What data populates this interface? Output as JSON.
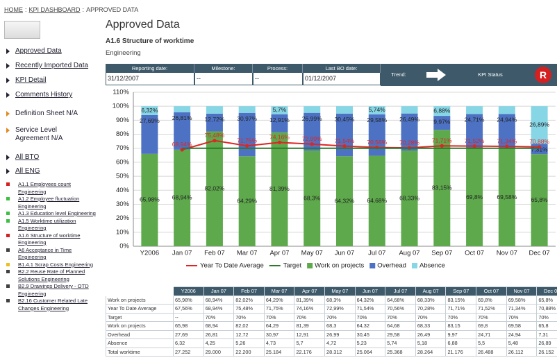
{
  "breadcrumb": {
    "items": [
      "HOME",
      "KPI DASHBOARD",
      "APPROVED DATA"
    ],
    "separator": ":"
  },
  "header": {
    "title": "Approved Data",
    "subtitle": "A1.6 Structure of worktime",
    "unit": "Engineering"
  },
  "info_bar": {
    "fields": [
      {
        "label": "Reporting date:",
        "value": "31/12/2007"
      },
      {
        "label": "Milestone:",
        "value": "--"
      },
      {
        "label": "Process:",
        "value": "--"
      },
      {
        "label": "Last BO date:",
        "value": "01/12/2007"
      }
    ],
    "trend_label": "Trend:",
    "kpi_status_label": "KPI Status",
    "kpi_status": "R"
  },
  "sidebar": {
    "nav": [
      "Approved Data",
      "Recently Imported Data",
      "KPI Detail",
      "Comments History"
    ],
    "info": [
      "Definition Sheet N/A",
      "Service Level Agreement N/A"
    ],
    "groups": [
      "All BTO",
      "All ENG"
    ],
    "kpis": [
      {
        "label": "A1.1 Employees count Engineering",
        "color": "#d42020"
      },
      {
        "label": "A1.2 Employee fluctuation Engineering",
        "color": "#3cc040"
      },
      {
        "label": "A1.3 Education level Engineering",
        "color": "#3cc040"
      },
      {
        "label": "A1.5 Worktime utilization Engineering",
        "color": "#3cc040"
      },
      {
        "label": "A1.6 Structure of worktime Engineering",
        "color": "#d42020"
      },
      {
        "label": "A6 Acceptance in Time Engineering",
        "color": "#404040"
      },
      {
        "label": "B1.4.1 Scrap Costs Engineering",
        "color": "#e8c020"
      },
      {
        "label": "B2.2 Reuse Rate of Planned Solutions Engineering",
        "color": "#404040"
      },
      {
        "label": "B2.9 Drawings Delivery - OTD Engineering",
        "color": "#404040"
      },
      {
        "label": "B2.16 Customer Related Late Changes Engineering",
        "color": "#404040"
      }
    ]
  },
  "chart_data": {
    "type": "bar",
    "stacked": true,
    "categories": [
      "Y2006",
      "Jan 07",
      "Feb 07",
      "Mar 07",
      "Apr 07",
      "May 07",
      "Jun 07",
      "Jul 07",
      "Aug 07",
      "Sep 07",
      "Oct 07",
      "Nov 07",
      "Dec 07"
    ],
    "series": [
      {
        "name": "Work on projects",
        "color": "#5ea94c",
        "values": [
          65.98,
          68.94,
          82.02,
          64.29,
          81.39,
          68.3,
          64.32,
          64.68,
          68.33,
          83.15,
          69.8,
          69.58,
          65.8
        ],
        "value_labels": [
          "65,98%",
          "68,94%",
          "82,02%",
          "64,29%",
          "81,39%",
          "68,3%",
          "64,32%",
          "64,68%",
          "68,33%",
          "83,15%",
          "69,8%",
          "69,58%",
          "65,8%"
        ]
      },
      {
        "name": "Overhead",
        "color": "#4d72c4",
        "values": [
          27.69,
          26.81,
          12.72,
          30.97,
          12.91,
          26.99,
          30.45,
          29.58,
          26.49,
          9.97,
          24.71,
          24.94,
          7.31
        ],
        "value_labels": [
          "27,69%",
          "26,81%",
          "12,72%",
          "30,97%",
          "12,91%",
          "26,99%",
          "30,45%",
          "29,58%",
          "26,49%",
          "9,97%",
          "24,71%",
          "24,94%",
          "7,31%"
        ]
      },
      {
        "name": "Absence",
        "color": "#86d6e6",
        "values": [
          6.32,
          4.25,
          5.26,
          4.73,
          5.7,
          4.72,
          5.23,
          5.74,
          5.18,
          6.88,
          5.5,
          5.48,
          26.89
        ],
        "value_labels": [
          "6,32%",
          null,
          null,
          null,
          "5,7%",
          null,
          null,
          "5,74%",
          null,
          "6,88%",
          null,
          null,
          "26,89%"
        ]
      }
    ],
    "lines": [
      {
        "name": "Year To Date Average",
        "color": "#e02424",
        "markers": true,
        "values": [
          null,
          68.94,
          75.48,
          71.75,
          74.16,
          72.99,
          71.54,
          70.56,
          70.28,
          71.71,
          71.52,
          71.34,
          70.88
        ],
        "value_labels": [
          null,
          "68,94%",
          "75,48%",
          "71,75%",
          "74,16%",
          "72,99%",
          "71,54%",
          "70,56%",
          "70,28%",
          "71,71%",
          "71,52%",
          "71,34%",
          "70,88%"
        ]
      },
      {
        "name": "Target",
        "color": "#2a7a2a",
        "markers": false,
        "values": [
          null,
          70,
          70,
          70,
          70,
          70,
          70,
          70,
          70,
          70,
          70,
          70,
          70
        ]
      }
    ],
    "ylim": [
      0,
      110
    ],
    "yticks": [
      {
        "value": 0,
        "label": "0%"
      },
      {
        "value": 10,
        "label": "10%"
      },
      {
        "value": 20,
        "label": "20%"
      },
      {
        "value": 30,
        "label": "30%"
      },
      {
        "value": 40,
        "label": "40%"
      },
      {
        "value": 50,
        "label": "50%"
      },
      {
        "value": 60,
        "label": "60%"
      },
      {
        "value": 70,
        "label": "70%"
      },
      {
        "value": 80,
        "label": "80%"
      },
      {
        "value": 90,
        "label": "90%"
      },
      {
        "value": 100,
        "label": "100%"
      },
      {
        "value": 110,
        "label": "110%"
      }
    ],
    "grid": true
  },
  "table": {
    "header": [
      "Y2006",
      "Jan 07",
      "Feb 07",
      "Mar 07",
      "Apr 07",
      "May 07",
      "Jun 07",
      "Jul 07",
      "Aug 07",
      "Sep 07",
      "Oct 07",
      "Nov 07",
      "Dec 07"
    ],
    "rows": [
      {
        "label": "Work on projects",
        "cells": [
          "65,98%",
          "68,94%",
          "82,02%",
          "64,29%",
          "81,39%",
          "68,3%",
          "64,32%",
          "64,68%",
          "68,33%",
          "83,15%",
          "69,8%",
          "69,58%",
          "65,8%"
        ]
      },
      {
        "label": "Year To Date Average",
        "cells": [
          "67,56%",
          "68,94%",
          "75,48%",
          "71,75%",
          "74,16%",
          "72,99%",
          "71,54%",
          "70,56%",
          "70,28%",
          "71,71%",
          "71,52%",
          "71,34%",
          "70,88%"
        ]
      },
      {
        "label": "Target",
        "cells": [
          "--",
          "70%",
          "70%",
          "70%",
          "70%",
          "70%",
          "70%",
          "70%",
          "70%",
          "70%",
          "70%",
          "70%",
          "70%"
        ]
      },
      {
        "label": "Work on projects",
        "cells": [
          "65,98",
          "68,94",
          "82,02",
          "64,29",
          "81,39",
          "68,3",
          "64,32",
          "64,68",
          "68,33",
          "83,15",
          "69,8",
          "69,58",
          "65,8"
        ]
      },
      {
        "label": "Overhead",
        "cells": [
          "27,69",
          "26,81",
          "12,72",
          "30,97",
          "12,91",
          "26,99",
          "30,45",
          "29,58",
          "26,49",
          "9,97",
          "24,71",
          "24,94",
          "7,31"
        ]
      },
      {
        "label": "Absence",
        "cells": [
          "6,32",
          "4,25",
          "5,26",
          "4,73",
          "5,7",
          "4,72",
          "5,23",
          "5,74",
          "5,18",
          "6,88",
          "5,5",
          "5,48",
          "26,89"
        ]
      },
      {
        "label": "Total worktime",
        "cells": [
          "27.252",
          "29.000",
          "22.200",
          "25.184",
          "22.176",
          "28.312",
          "25.064",
          "25.368",
          "28.264",
          "21.176",
          "26.488",
          "26.112",
          "26.152"
        ]
      }
    ]
  }
}
